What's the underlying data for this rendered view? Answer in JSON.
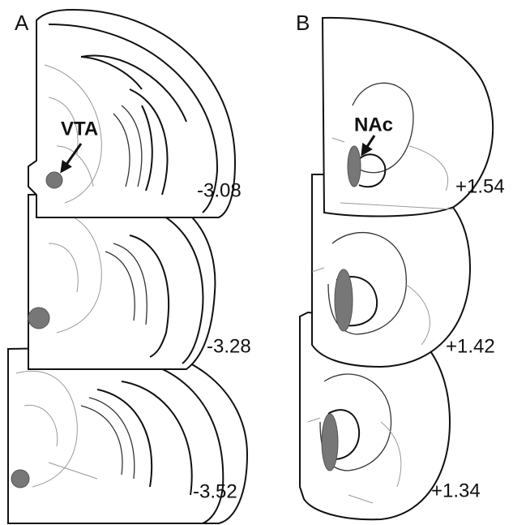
{
  "panels": [
    {
      "label": "A",
      "annotation": "VTA",
      "sections": [
        "-3.08",
        "-3.28",
        "-3.52"
      ]
    },
    {
      "label": "B",
      "annotation": "NAc",
      "sections": [
        "+1.54",
        "+1.42",
        "+1.34"
      ]
    }
  ]
}
